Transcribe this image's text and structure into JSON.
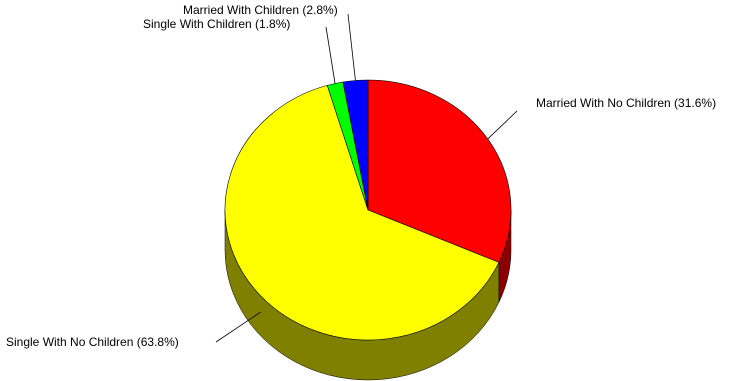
{
  "chart_data": {
    "type": "pie",
    "style": "3d",
    "slices": [
      {
        "label": "Married With No Children (31.6%)",
        "value": 31.6,
        "color": "#ff0000",
        "side_color": "#8b0000"
      },
      {
        "label": "Single With No Children (63.8%)",
        "value": 63.8,
        "color": "#ffff00",
        "side_color": "#808000"
      },
      {
        "label": "Single With Children (1.8%)",
        "value": 1.8,
        "color": "#00ff00",
        "side_color": "#007a00"
      },
      {
        "label": "Married With Children (2.8%)",
        "value": 2.8,
        "color": "#0000ff",
        "side_color": "#00007a"
      }
    ],
    "start_position": "top",
    "direction": "clockwise",
    "legend": "none"
  }
}
